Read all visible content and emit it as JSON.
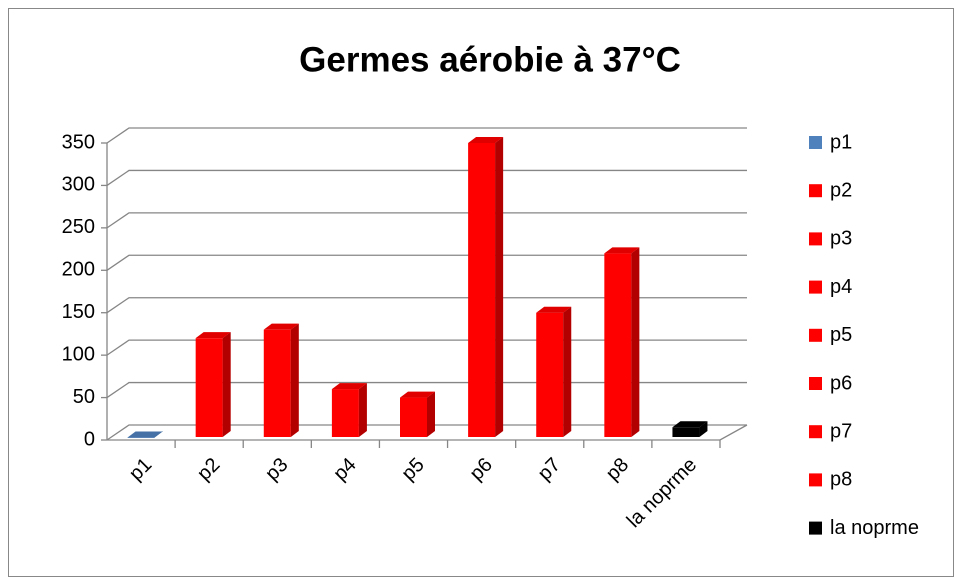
{
  "chart_data": {
    "type": "bar3d",
    "title": "Germes aérobie à 37°C",
    "categories": [
      "p1",
      "p2",
      "p3",
      "p4",
      "p5",
      "p6",
      "p7",
      "p8",
      "la noprme"
    ],
    "values": [
      3,
      120,
      130,
      60,
      50,
      350,
      150,
      220,
      15
    ],
    "colors": [
      "#4f81bd",
      "#ff0000",
      "#ff0000",
      "#ff0000",
      "#ff0000",
      "#ff0000",
      "#ff0000",
      "#ff0000",
      "#000000"
    ],
    "ylim": [
      0,
      350
    ],
    "yticks": [
      0,
      50,
      100,
      150,
      200,
      250,
      300,
      350
    ],
    "grid": true,
    "legend": "right"
  }
}
